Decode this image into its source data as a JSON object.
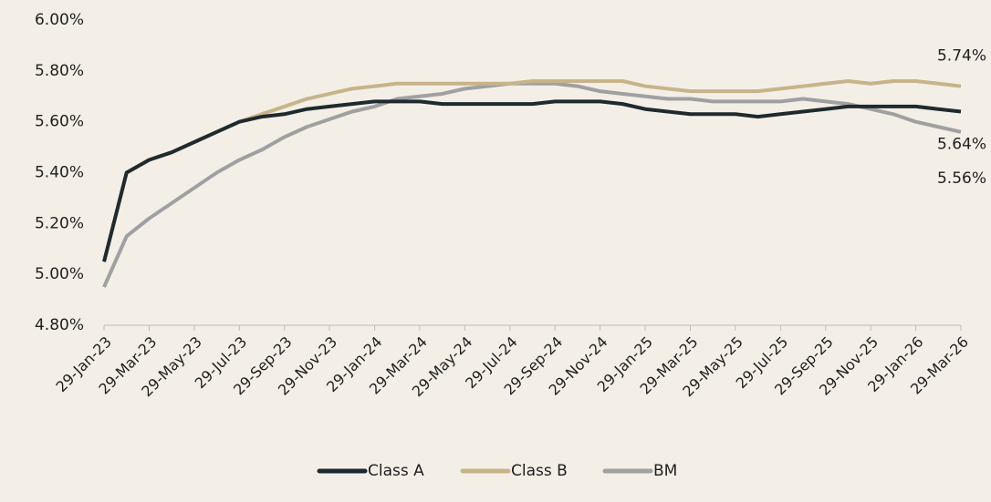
{
  "chart_data": {
    "type": "line",
    "categories": [
      "29-Jan-23",
      null,
      "29-Mar-23",
      null,
      "29-May-23",
      null,
      "29-Jul-23",
      null,
      "29-Sep-23",
      null,
      "29-Nov-23",
      null,
      "29-Jan-24",
      null,
      "29-Mar-24",
      null,
      "29-May-24",
      null,
      "29-Jul-24",
      null,
      "29-Sep-24",
      null,
      "29-Nov-24",
      null,
      "29-Jan-25",
      null,
      "29-Mar-25",
      null,
      "29-May-25",
      null,
      "29-Jul-25",
      null,
      "29-Sep-25",
      null,
      "29-Nov-25",
      null,
      "29-Jan-26",
      null,
      "29-Mar-26"
    ],
    "series": [
      {
        "name": "Class A",
        "color": "#1f2a2e",
        "values": [
          5.05,
          5.4,
          5.45,
          5.48,
          5.52,
          5.56,
          5.6,
          5.62,
          5.63,
          5.65,
          5.66,
          5.67,
          5.68,
          5.68,
          5.68,
          5.67,
          5.67,
          5.67,
          5.67,
          5.67,
          5.68,
          5.68,
          5.68,
          5.67,
          5.65,
          5.64,
          5.63,
          5.63,
          5.63,
          5.62,
          5.63,
          5.64,
          5.65,
          5.66,
          5.66,
          5.66,
          5.66,
          5.65,
          5.64
        ],
        "value_labels": [
          null,
          null,
          null,
          null,
          null,
          null,
          null,
          null,
          null,
          null,
          null,
          null,
          null,
          null,
          null,
          null,
          null,
          null,
          null,
          null,
          null,
          null,
          null,
          null,
          null,
          null,
          null,
          null,
          null,
          null,
          null,
          null,
          null,
          null,
          null,
          null,
          null,
          null,
          "5.64%"
        ]
      },
      {
        "name": "Class B",
        "color": "#c8b48a",
        "values": [
          5.05,
          5.4,
          5.45,
          5.48,
          5.52,
          5.56,
          5.6,
          5.63,
          5.66,
          5.69,
          5.71,
          5.73,
          5.74,
          5.75,
          5.75,
          5.75,
          5.75,
          5.75,
          5.75,
          5.76,
          5.76,
          5.76,
          5.76,
          5.76,
          5.74,
          5.73,
          5.72,
          5.72,
          5.72,
          5.72,
          5.73,
          5.74,
          5.75,
          5.76,
          5.75,
          5.76,
          5.76,
          5.75,
          5.74
        ],
        "value_labels": [
          null,
          null,
          null,
          null,
          null,
          null,
          null,
          null,
          null,
          null,
          null,
          null,
          null,
          null,
          null,
          null,
          null,
          null,
          null,
          null,
          null,
          null,
          null,
          null,
          null,
          null,
          null,
          null,
          null,
          null,
          null,
          null,
          null,
          null,
          null,
          null,
          null,
          null,
          "5.74%"
        ]
      },
      {
        "name": "BM",
        "color": "#a0a0a2",
        "values": [
          4.95,
          5.15,
          5.22,
          5.28,
          5.34,
          5.4,
          5.45,
          5.49,
          5.54,
          5.58,
          5.61,
          5.64,
          5.66,
          5.69,
          5.7,
          5.71,
          5.73,
          5.74,
          5.75,
          5.75,
          5.75,
          5.74,
          5.72,
          5.71,
          5.7,
          5.69,
          5.69,
          5.68,
          5.68,
          5.68,
          5.68,
          5.69,
          5.68,
          5.67,
          5.65,
          5.63,
          5.6,
          5.58,
          5.56
        ],
        "value_labels": [
          null,
          null,
          null,
          null,
          null,
          null,
          null,
          null,
          null,
          null,
          null,
          null,
          null,
          null,
          null,
          null,
          null,
          null,
          null,
          null,
          null,
          null,
          null,
          null,
          null,
          null,
          null,
          null,
          null,
          null,
          null,
          null,
          null,
          null,
          null,
          null,
          null,
          null,
          "5.56%"
        ]
      }
    ],
    "ylim": [
      4.8,
      6.0
    ],
    "yticks": [
      {
        "value": 4.8,
        "label": "4.80%"
      },
      {
        "value": 5.0,
        "label": "5.00%"
      },
      {
        "value": 5.2,
        "label": "5.20%"
      },
      {
        "value": 5.4,
        "label": "5.40%"
      },
      {
        "value": 5.6,
        "label": "5.60%"
      },
      {
        "value": 5.8,
        "label": "5.80%"
      },
      {
        "value": 6.0,
        "label": "6.00%"
      }
    ],
    "grid": false,
    "legend": "bottom"
  }
}
